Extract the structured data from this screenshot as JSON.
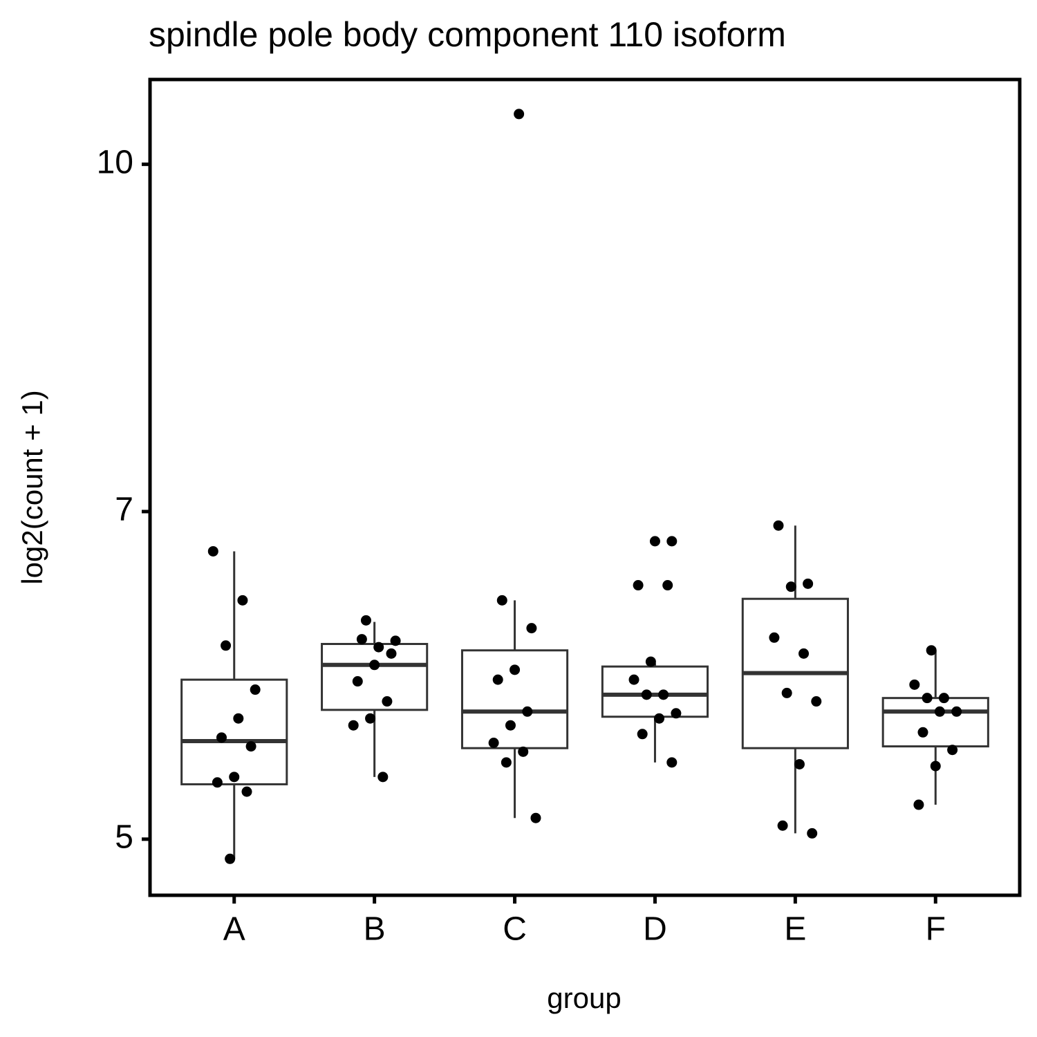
{
  "chart_data": {
    "type": "boxplot",
    "title": "spindle pole body component 110 isoform",
    "xlabel": "group",
    "ylabel": "log2(count + 1)",
    "categories": [
      "A",
      "B",
      "C",
      "D",
      "E",
      "F"
    ],
    "boxes": [
      {
        "whislo": 4.9,
        "q1": 5.29,
        "med": 5.53,
        "q3": 5.89,
        "whishi": 6.72
      },
      {
        "whislo": 5.33,
        "q1": 5.71,
        "med": 5.98,
        "q3": 6.11,
        "whishi": 6.25
      },
      {
        "whislo": 5.11,
        "q1": 5.49,
        "med": 5.7,
        "q3": 6.07,
        "whishi": 6.39
      },
      {
        "whislo": 5.41,
        "q1": 5.67,
        "med": 5.8,
        "q3": 5.97,
        "whishi": 5.99
      },
      {
        "whislo": 5.03,
        "q1": 5.49,
        "med": 5.93,
        "q3": 6.4,
        "whishi": 6.9
      },
      {
        "whislo": 5.18,
        "q1": 5.5,
        "med": 5.7,
        "q3": 5.78,
        "whishi": 6.07
      }
    ],
    "points": [
      [
        6.72,
        6.39,
        6.1,
        5.83,
        5.66,
        5.55,
        5.5,
        5.33,
        5.3,
        5.25,
        4.9
      ],
      [
        6.26,
        6.13,
        6.09,
        6.14,
        6.05,
        5.98,
        5.88,
        5.76,
        5.66,
        5.62,
        5.33
      ],
      [
        10.53,
        6.39,
        6.21,
        5.95,
        5.89,
        5.7,
        5.62,
        5.52,
        5.47,
        5.41,
        5.11
      ],
      [
        6.79,
        6.79,
        6.49,
        6.49,
        6.0,
        5.89,
        5.8,
        5.8,
        5.69,
        5.66,
        5.57,
        5.41
      ],
      [
        6.9,
        6.5,
        6.48,
        6.15,
        6.05,
        5.81,
        5.76,
        5.4,
        5.07,
        5.03
      ],
      [
        6.07,
        5.86,
        5.78,
        5.78,
        5.7,
        5.7,
        5.58,
        5.48,
        5.39,
        5.18
      ]
    ],
    "box_color": "#333333",
    "point_color": "#000000",
    "ylog": true,
    "ylim": [
      4.72,
      10.91
    ],
    "yticks": [
      5,
      7,
      10
    ],
    "grid": false
  }
}
